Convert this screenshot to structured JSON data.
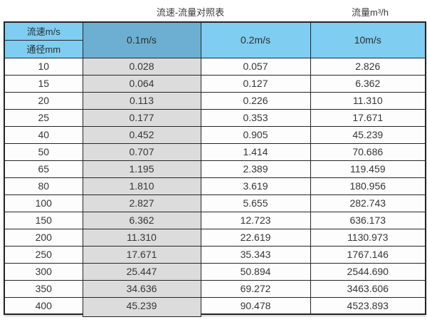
{
  "chart_data": {
    "type": "table",
    "title": "流速-流量对照表",
    "unit_label": "流量m³/h",
    "corner_top": "流速m/s",
    "corner_bottom": "通径mm",
    "columns": [
      "0.1m/s",
      "0.2m/s",
      "10m/s"
    ],
    "rows": [
      {
        "diameter": "10",
        "values": [
          "0.028",
          "0.057",
          "2.826"
        ]
      },
      {
        "diameter": "15",
        "values": [
          "0.064",
          "0.127",
          "6.362"
        ]
      },
      {
        "diameter": "20",
        "values": [
          "0.113",
          "0.226",
          "11.310"
        ]
      },
      {
        "diameter": "25",
        "values": [
          "0.177",
          "0.353",
          "17.671"
        ]
      },
      {
        "diameter": "40",
        "values": [
          "0.452",
          "0.905",
          "45.239"
        ]
      },
      {
        "diameter": "50",
        "values": [
          "0.707",
          "1.414",
          "70.686"
        ]
      },
      {
        "diameter": "65",
        "values": [
          "1.195",
          "2.389",
          "119.459"
        ]
      },
      {
        "diameter": "80",
        "values": [
          "1.810",
          "3.619",
          "180.956"
        ]
      },
      {
        "diameter": "100",
        "values": [
          "2.827",
          "5.655",
          "282.743"
        ]
      },
      {
        "diameter": "150",
        "values": [
          "6.362",
          "12.723",
          "636.173"
        ]
      },
      {
        "diameter": "200",
        "values": [
          "11.310",
          "22.619",
          "1130.973"
        ]
      },
      {
        "diameter": "250",
        "values": [
          "17.671",
          "35.343",
          "1767.146"
        ]
      },
      {
        "diameter": "300",
        "values": [
          "25.447",
          "50.894",
          "2544.690"
        ]
      },
      {
        "diameter": "350",
        "values": [
          "34.636",
          "69.272",
          "3463.606"
        ]
      },
      {
        "diameter": "400",
        "values": [
          "45.239",
          "90.478",
          "4523.893"
        ]
      }
    ],
    "colors": {
      "header_light_blue": "#7FCDF0",
      "header_dark_blue": "#6CAFD2",
      "highlight_column_gray": "#DCDCDC",
      "border": "#262626",
      "text": "#333333"
    }
  }
}
